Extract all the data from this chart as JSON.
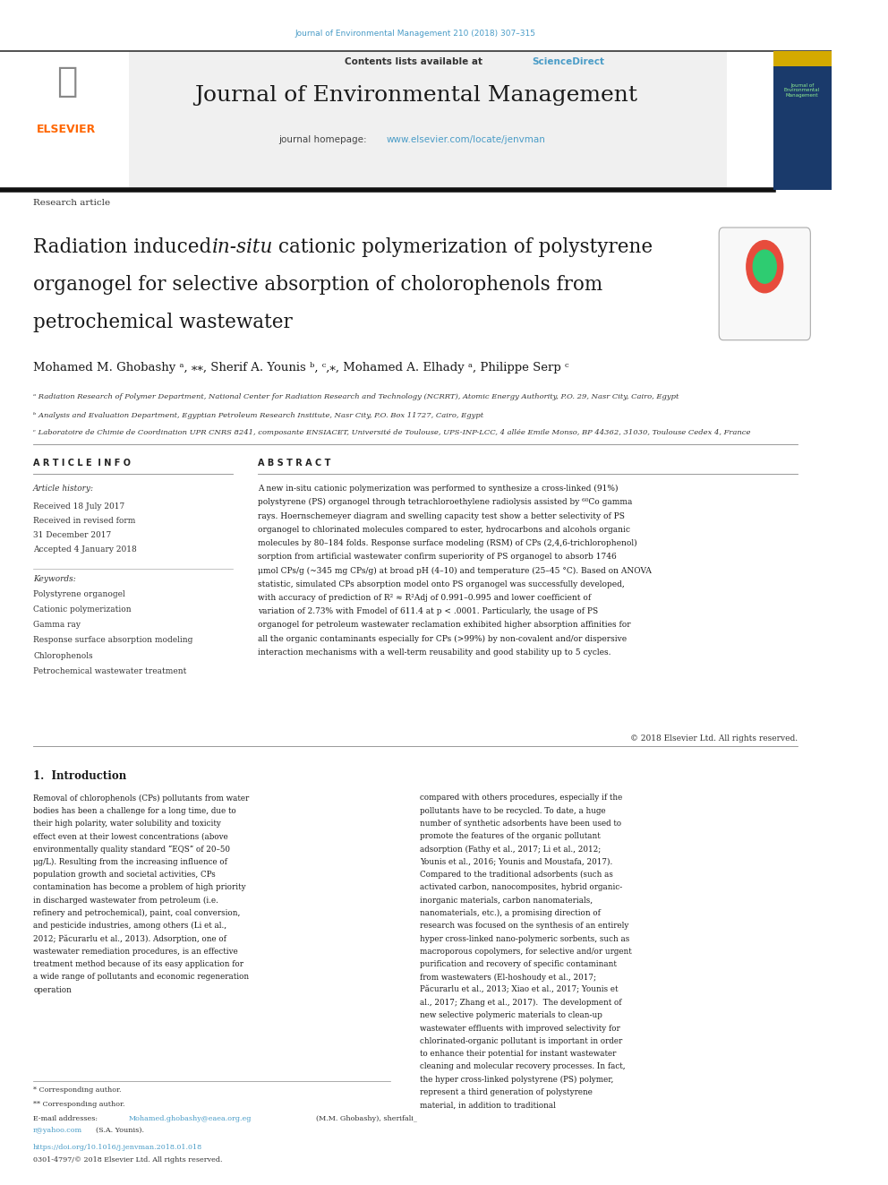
{
  "page_width": 9.92,
  "page_height": 13.23,
  "background_color": "#ffffff",
  "top_link": "Journal of Environmental Management 210 (2018) 307–315",
  "top_link_color": "#4A9CC7",
  "header_bg": "#f0f0f0",
  "contents_text": "Contents lists available at ",
  "sciencedirect_text": "ScienceDirect",
  "sciencedirect_color": "#4A9CC7",
  "journal_title": "Journal of Environmental Management",
  "homepage_label": "journal homepage: ",
  "homepage_url": "www.elsevier.com/locate/jenvman",
  "homepage_color": "#4A9CC7",
  "elsevier_color": "#FF6600",
  "divider_color": "#2C2C2C",
  "article_type": "Research article",
  "paper_title_part1": "Radiation induced ",
  "paper_title_italic": "in-situ",
  "paper_title_part2": " cationic polymerization of polystyrene",
  "paper_title_line2": "organogel for selective absorption of cholorophenols from",
  "paper_title_line3": "petrochemical wastewater",
  "authors": "Mohamed M. Ghobashy ᵃ, ⁎⁎, Sherif A. Younis ᵇ, ᶜ,⁎, Mohamed A. Elhady ᵃ, Philippe Serp ᶜ",
  "affil_a": "ᵃ Radiation Research of Polymer Department, National Center for Radiation Research and Technology (NCRRT), Atomic Energy Authority, P.O. 29, Nasr City, Cairo, Egypt",
  "affil_b": "ᵇ Analysis and Evaluation Department, Egyptian Petroleum Research Institute, Nasr City, P.O. Box 11727, Cairo, Egypt",
  "affil_c": "ᶜ Laboratoire de Chimie de Coordination UPR CNRS 8241, composante ENSIACET, Université de Toulouse, UPS-INP-LCC, 4 allée Emile Monso, BP 44362, 31030, Toulouse Cedex 4, France",
  "article_info_title": "A R T I C L E  I N F O",
  "abstract_title": "A B S T R A C T",
  "article_history_label": "Article history:",
  "received_1": "Received 18 July 2017",
  "received_2": "Received in revised form",
  "received_2b": "31 December 2017",
  "accepted": "Accepted 4 January 2018",
  "keywords_label": "Keywords:",
  "keyword1": "Polystyrene organogel",
  "keyword2": "Cationic polymerization",
  "keyword3": "Gamma ray",
  "keyword4": "Response surface absorption modeling",
  "keyword5": "Chlorophenols",
  "keyword6": "Petrochemical wastewater treatment",
  "abstract_text": "A new in-situ cationic polymerization was performed to synthesize a cross-linked (91%) polystyrene (PS) organogel through tetrachloroethylene radiolysis assisted by ⁶⁰Co gamma rays. Hoernschemeyer diagram and swelling capacity test show a better selectivity of PS organogel to chlorinated molecules compared to ester, hydrocarbons and alcohols organic molecules by 80–184 folds. Response surface modeling (RSM) of CPs (2,4,6-trichlorophenol) sorption from artificial wastewater confirm superiority of PS organogel to absorb 1746 μmol CPs/g (~345 mg CPs/g) at broad pH (4–10) and temperature (25–45 °C). Based on ANOVA statistic, simulated CPs absorption model onto PS organogel was successfully developed, with accuracy of prediction of R² ≈ R²Adj of 0.991–0.995 and lower coefficient of variation of 2.73% with Fmodel of 611.4 at p < .0001. Particularly, the usage of PS organogel for petroleum wastewater reclamation exhibited higher absorption affinities for all the organic contaminants especially for CPs (>99%) by non-covalent and/or dispersive interaction mechanisms with a well-term reusability and good stability up to 5 cycles.",
  "copyright": "© 2018 Elsevier Ltd. All rights reserved.",
  "intro_heading": "1.  Introduction",
  "intro_col1": "Removal of chlorophenols (CPs) pollutants from water bodies has been a challenge for a long time, due to their high polarity, water solubility and toxicity effect even at their lowest concentrations (above environmentally quality standard “EQS” of 20–50 μg/L). Resulting from the increasing influence of population growth and societal activities, CPs contamination has become a problem of high priority in discharged wastewater from petroleum (i.e. refinery and petrochemical), paint, coal conversion, and pesticide industries, among others (Li et al., 2012; Păcurarlu et al., 2013). Adsorption, one of wastewater remediation procedures, is an effective treatment method because of its easy application for a wide range of pollutants and economic regeneration operation",
  "intro_col2": "compared with others procedures, especially if the pollutants have to be recycled. To date, a huge number of synthetic adsorbents have been used to promote the features of the organic pollutant adsorption (Fathy et al., 2017; Li et al., 2012; Younis et al., 2016; Younis and Moustafa, 2017). Compared to the traditional adsorbents (such as activated carbon, nanocomposites, hybrid organic-inorganic materials, carbon nanomaterials, nanomaterials, etc.), a promising direction of research was focused on the synthesis of an entirely hyper cross-linked nano-polymeric sorbents, such as macroporous copolymers, for selective and/or urgent purification and recovery of specific contaminant from wastewaters (El-hoshoudy et al., 2017; Păcurarlu et al., 2013; Xiao et al., 2017; Younis et al., 2017; Zhang et al., 2017).",
  "intro_col2b": "The development of new selective polymeric materials to clean-up wastewater effluents with improved selectivity for chlorinated-organic pollutant is important in order to enhance their potential for instant wastewater cleaning and molecular recovery processes. In fact, the hyper cross-linked polystyrene (PS) polymer, represent a third generation of polystyrene material, in addition to traditional",
  "footnote_star": "* Corresponding author.",
  "footnote_starstar": "** Corresponding author.",
  "footnote_email": "E-mail addresses: Mohamed.ghobashy@eaea.org.eg (M.M. Ghobashy), sherifali_r@yahoo.com (S.A. Younis).",
  "footnote_email_color": "#4A9CC7",
  "doi_text": "https://doi.org/10.1016/j.jenvman.2018.01.018",
  "doi_color": "#4A9CC7",
  "issn_text": "0301-4797/© 2018 Elsevier Ltd. All rights reserved."
}
